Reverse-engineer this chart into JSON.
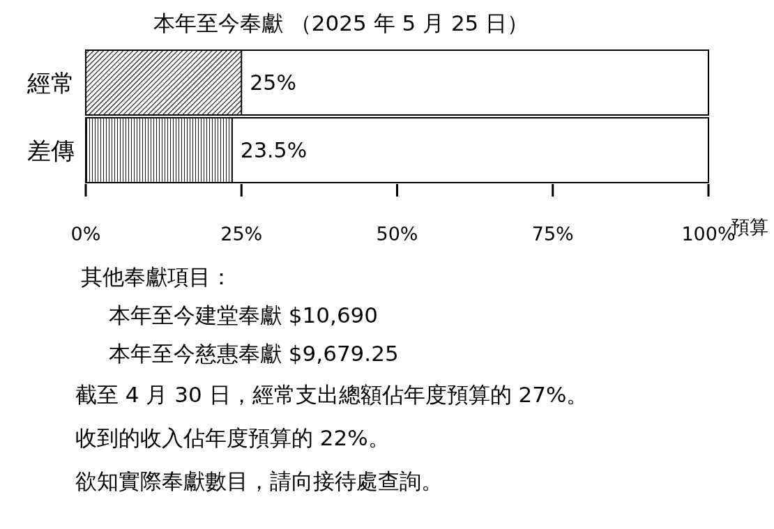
{
  "chart_data": {
    "type": "bar",
    "orientation": "horizontal",
    "title": "本年至今奉獻 （2025 年 5 月 25 日）",
    "categories": [
      "經常",
      "差傳"
    ],
    "values": [
      25,
      23.5
    ],
    "colors": [
      "#000000",
      "#000000"
    ],
    "value_labels": [
      "25%",
      "23.5%"
    ],
    "xlabel": "預算",
    "xlim": [
      0,
      100
    ],
    "xticks": [
      {
        "value": 0,
        "label": "0%"
      },
      {
        "value": 25,
        "label": "25%"
      },
      {
        "value": 50,
        "label": "50%"
      },
      {
        "value": 75,
        "label": "75%"
      },
      {
        "value": 100,
        "label": "100%"
      }
    ],
    "grid": false,
    "legend": false,
    "annotations": [
      "其他奉獻項目：",
      "本年至今建堂奉獻 $10,690",
      "本年至今慈惠奉獻 $9,679.25",
      "截至 4 月 30 日，經常支出總額佔年度預算的 27%。",
      "收到的收入佔年度預算的 22%。",
      "欲知實際奉獻數目，請向接待處查詢。"
    ]
  }
}
